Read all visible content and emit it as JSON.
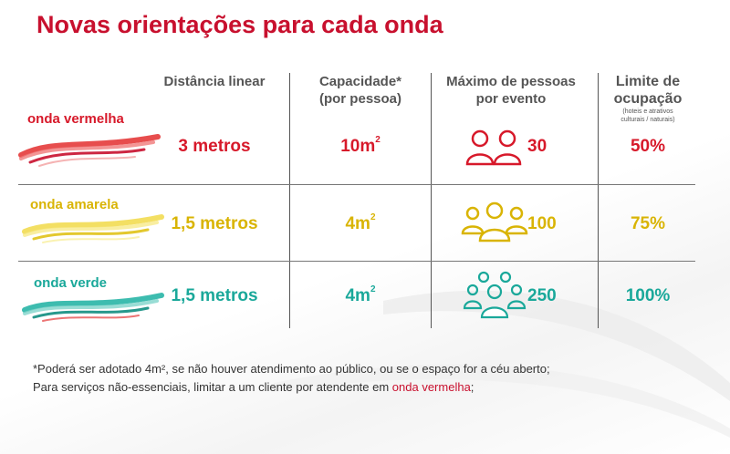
{
  "title": "Novas orientações para cada onda",
  "headers": {
    "distancia": "Distância linear",
    "capacidade_l1": "Capacidade*",
    "capacidade_l2": "(por pessoa)",
    "maximo_l1": "Máximo de pessoas",
    "maximo_l2": "por evento",
    "limite_l1": "Limite de",
    "limite_l2": "ocupação",
    "limite_sub1": "(hoteis e atrativos",
    "limite_sub2": "culturais / naturais)"
  },
  "rows": [
    {
      "label": "onda vermelha",
      "distancia": "3 metros",
      "capacidade": "10m",
      "capacidade_sup": "2",
      "maximo": "30",
      "limite": "50%",
      "icon": "two-people-icon",
      "color": "#d7192a"
    },
    {
      "label": "onda amarela",
      "distancia": "1,5 metros",
      "capacidade": "4m",
      "capacidade_sup": "2",
      "maximo": "100",
      "limite": "75%",
      "icon": "group-people-icon",
      "color": "#d9b404"
    },
    {
      "label": "onda verde",
      "distancia": "1,5 metros",
      "capacidade": "4m",
      "capacidade_sup": "2",
      "maximo": "250",
      "limite": "100%",
      "icon": "crowd-people-icon",
      "color": "#1aa89a"
    }
  ],
  "notes": {
    "line1": "*Poderá ser adotado 4m², se não houver atendimento ao público, ou se o espaço for a céu aberto;",
    "line2_prefix": "Para serviços não-essenciais, limitar a um cliente por atendente em ",
    "line2_highlight": "onda vermelha",
    "line2_suffix": ";"
  },
  "colors": {
    "title": "#c8102e",
    "red": "#d7192a",
    "yellow": "#d9b404",
    "green": "#1aa89a"
  }
}
